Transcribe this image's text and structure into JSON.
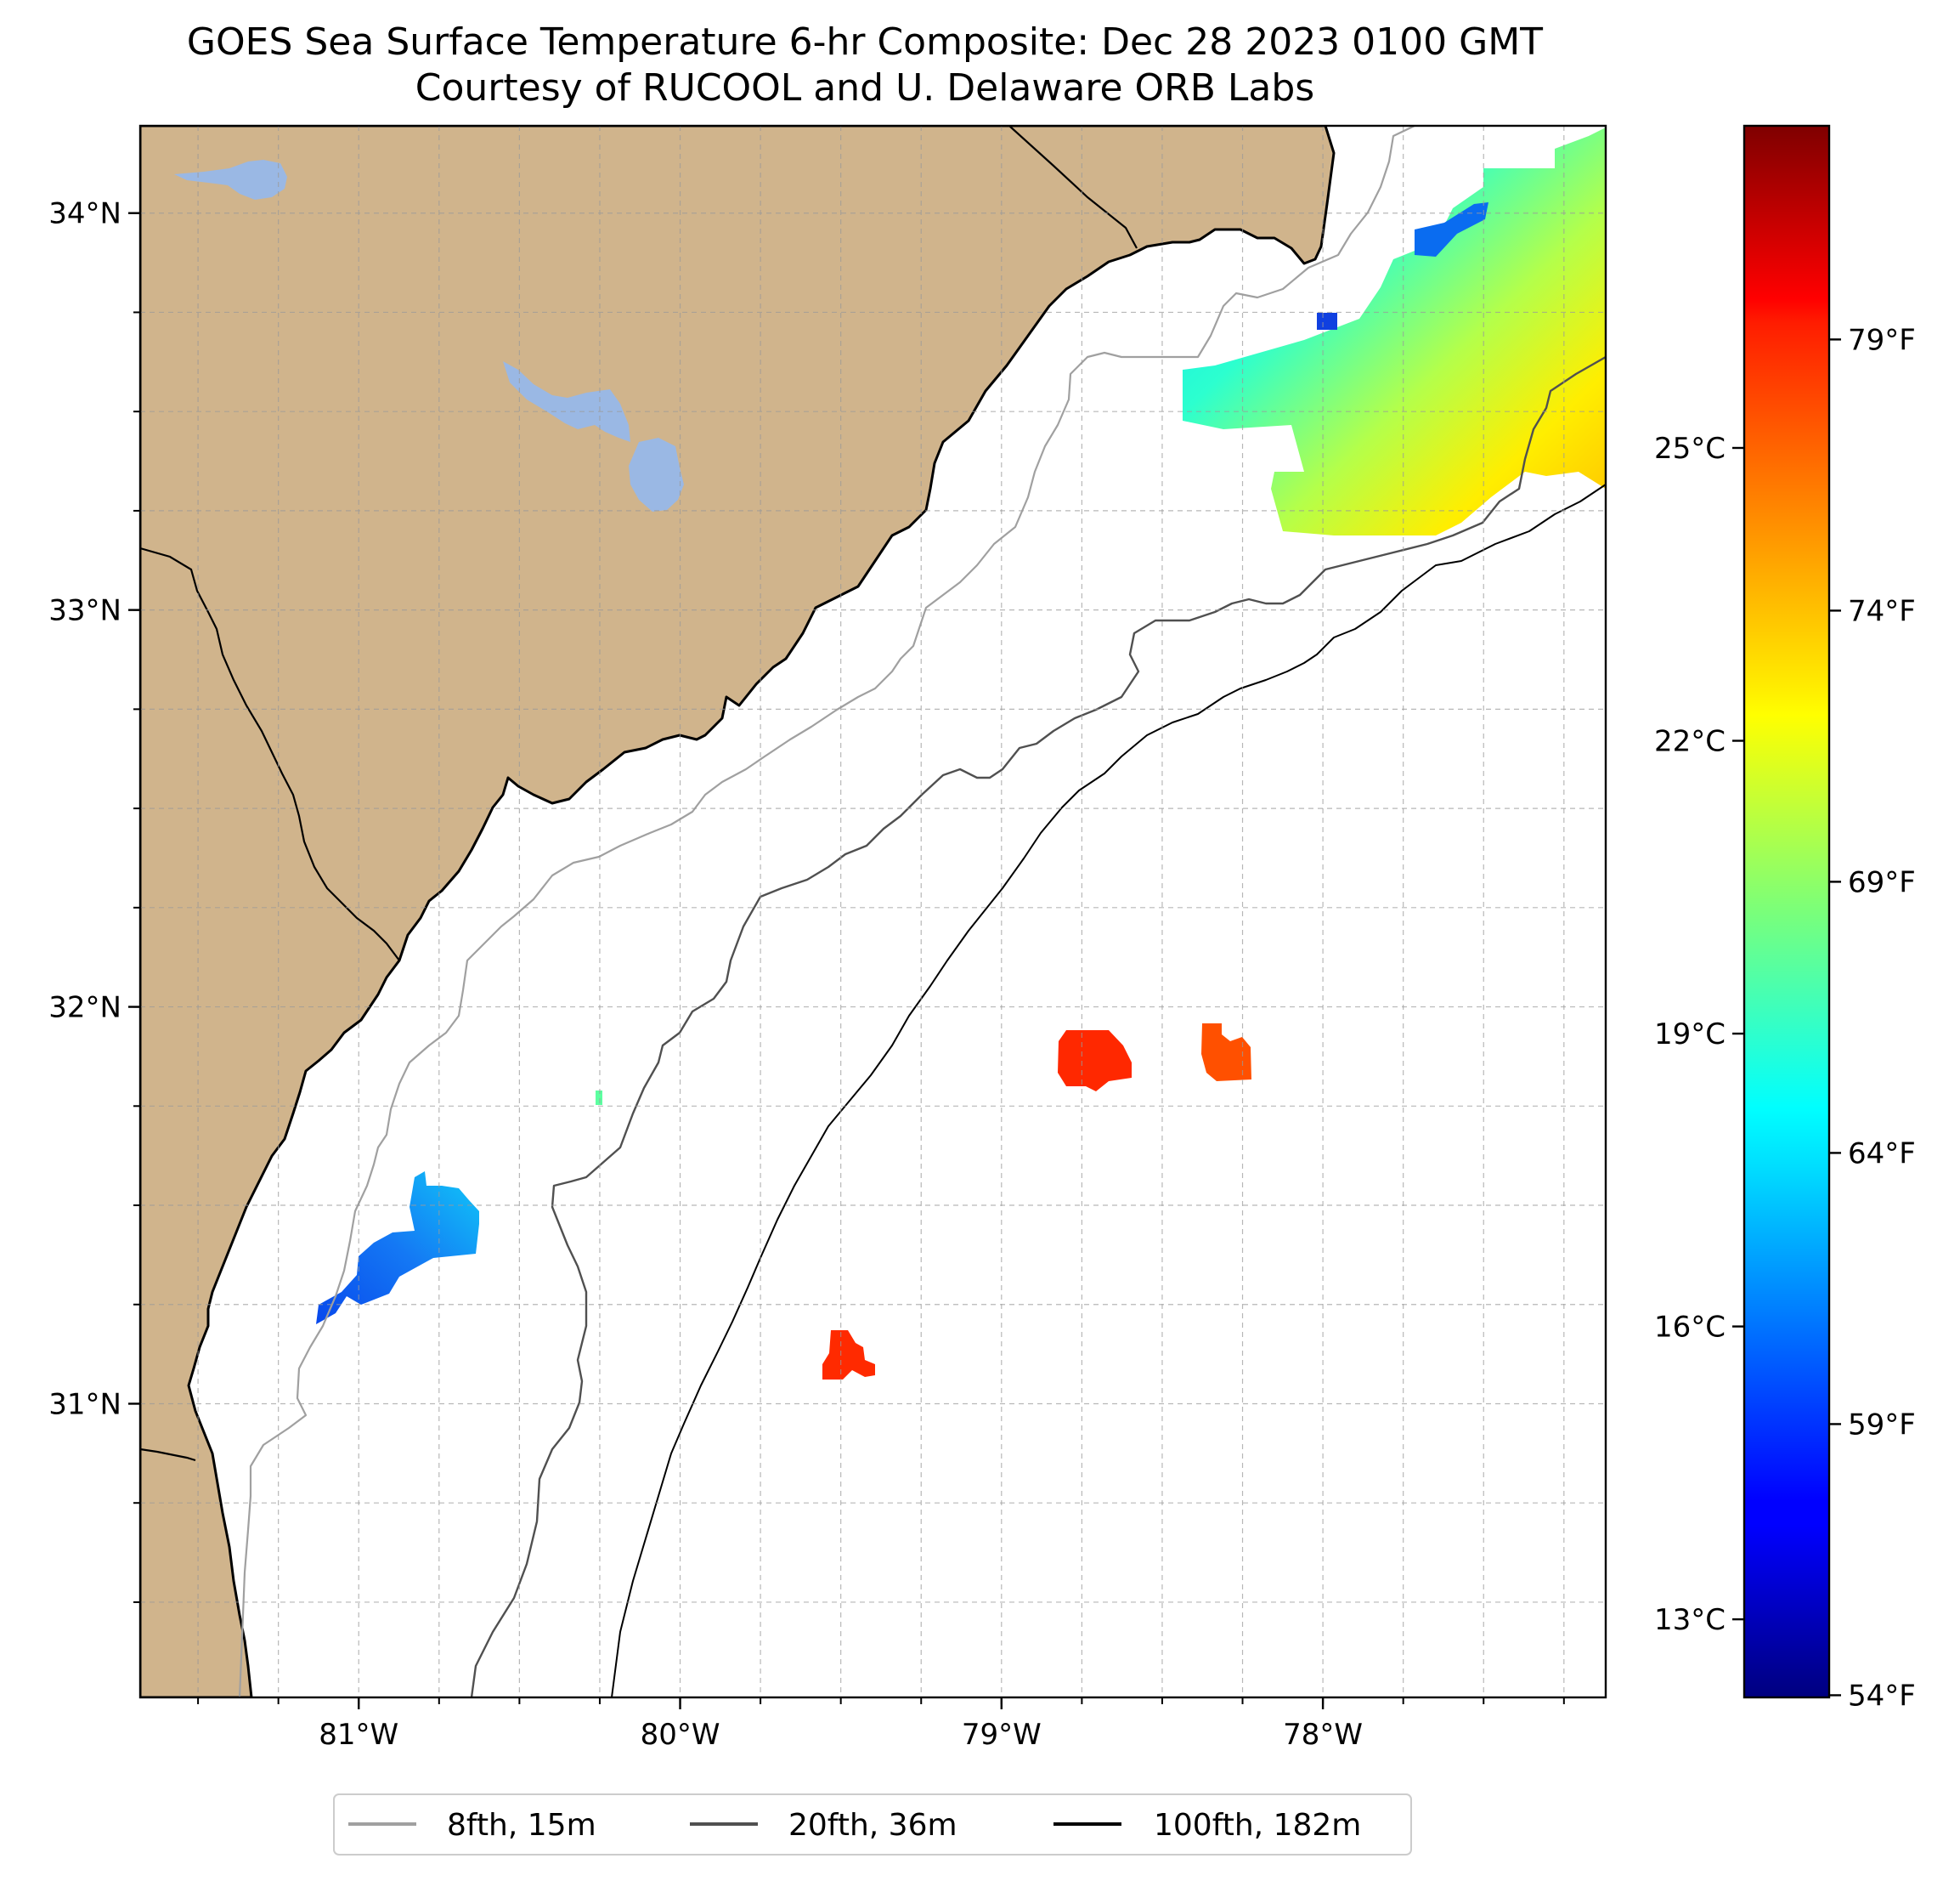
{
  "title": {
    "line1": "GOES Sea Surface Temperature 6-hr Composite: Dec 28 2023 0100 GMT",
    "line2": "Courtesy of RUCOOL and U. Delaware ORB Labs"
  },
  "map": {
    "lon_range": [
      -81.68,
      -77.12
    ],
    "lat_range": [
      30.26,
      34.22
    ],
    "lon_ticks": [
      {
        "value": -81,
        "label": "81°W"
      },
      {
        "value": -80,
        "label": "80°W"
      },
      {
        "value": -79,
        "label": "79°W"
      },
      {
        "value": -78,
        "label": "78°W"
      }
    ],
    "lat_ticks": [
      {
        "value": 31,
        "label": "31°N"
      },
      {
        "value": 32,
        "label": "32°N"
      },
      {
        "value": 33,
        "label": "33°N"
      },
      {
        "value": 34,
        "label": "34°N"
      }
    ],
    "grid": true,
    "land_color": "#d0b48c",
    "lake_color": "#9ab8e4",
    "ocean_color": "#ffffff"
  },
  "colorbar": {
    "colormap": "jet",
    "celsius_range": [
      12.2,
      28.3
    ],
    "celsius_ticks": [
      {
        "value": 13,
        "label": "13°C"
      },
      {
        "value": 16,
        "label": "16°C"
      },
      {
        "value": 19,
        "label": "19°C"
      },
      {
        "value": 22,
        "label": "22°C"
      },
      {
        "value": 25,
        "label": "25°C"
      }
    ],
    "fahrenheit_ticks": [
      {
        "value": 54,
        "label": "54°F"
      },
      {
        "value": 59,
        "label": "59°F"
      },
      {
        "value": 64,
        "label": "64°F"
      },
      {
        "value": 69,
        "label": "69°F"
      },
      {
        "value": 74,
        "label": "74°F"
      },
      {
        "value": 79,
        "label": "79°F"
      }
    ]
  },
  "legend": {
    "placement": "bottom-center",
    "items": [
      {
        "label": "8fth, 15m",
        "color": "#a0a0a0"
      },
      {
        "label": "20fth, 36m",
        "color": "#505050"
      },
      {
        "label": "100fth, 182m",
        "color": "#000000"
      }
    ]
  }
}
